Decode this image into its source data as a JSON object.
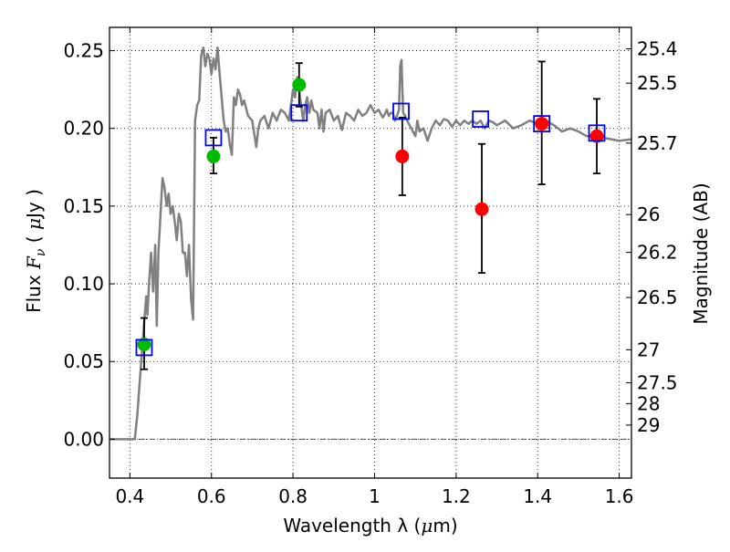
{
  "chart_data": {
    "type": "scatter",
    "title": "",
    "xlabel": {
      "pre": "Wavelength  λ (",
      "mu": "μ",
      "post": "m)"
    },
    "ylabel": {
      "pre": "Flux  ",
      "F": "F",
      "nu": "ν",
      "mid": "  ( ",
      "mu": "μ",
      "post": "Jy )"
    },
    "y2label": "Magnitude (AB)",
    "xlim": [
      0.35,
      1.63
    ],
    "ylim": [
      -0.025,
      0.265
    ],
    "grid": true,
    "xticks": [
      {
        "value": 0.4,
        "label": "0.4"
      },
      {
        "value": 0.6,
        "label": "0.6"
      },
      {
        "value": 0.8,
        "label": "0.8"
      },
      {
        "value": 1.0,
        "label": "1"
      },
      {
        "value": 1.2,
        "label": "1.2"
      },
      {
        "value": 1.4,
        "label": "1.4"
      },
      {
        "value": 1.6,
        "label": "1.6"
      }
    ],
    "yticks": [
      {
        "value": 0.0,
        "label": "0.00"
      },
      {
        "value": 0.05,
        "label": "0.05"
      },
      {
        "value": 0.1,
        "label": "0.10"
      },
      {
        "value": 0.15,
        "label": "0.15"
      },
      {
        "value": 0.2,
        "label": "0.20"
      },
      {
        "value": 0.25,
        "label": "0.25"
      }
    ],
    "y2ticks": [
      {
        "mag": 25.4,
        "label": "25.4"
      },
      {
        "mag": 25.5,
        "label": "25.5"
      },
      {
        "mag": 25.7,
        "label": "25.7"
      },
      {
        "mag": 26,
        "label": "26"
      },
      {
        "mag": 26.2,
        "label": "26.2"
      },
      {
        "mag": 26.5,
        "label": "26.5"
      },
      {
        "mag": 27,
        "label": "27"
      },
      {
        "mag": 27.5,
        "label": "27.5"
      },
      {
        "mag": 28,
        "label": "28"
      },
      {
        "mag": 29,
        "label": "29"
      }
    ],
    "colors": {
      "model": "#808080",
      "model_photometry": "#0000ff",
      "detections": "#00bb00",
      "upper_points": "#ff0000",
      "errorbar": "#000000"
    },
    "series": [
      {
        "kind": "model-spectrum",
        "points": [
          [
            0.35,
            0.0
          ],
          [
            0.36,
            0.0
          ],
          [
            0.38,
            0.0
          ],
          [
            0.4,
            0.0
          ],
          [
            0.412,
            0.0
          ],
          [
            0.418,
            0.015
          ],
          [
            0.425,
            0.04
          ],
          [
            0.43,
            0.058
          ],
          [
            0.435,
            0.075
          ],
          [
            0.44,
            0.092
          ],
          [
            0.443,
            0.08
          ],
          [
            0.447,
            0.1
          ],
          [
            0.452,
            0.12
          ],
          [
            0.457,
            0.095
          ],
          [
            0.462,
            0.125
          ],
          [
            0.466,
            0.073
          ],
          [
            0.47,
            0.12
          ],
          [
            0.475,
            0.145
          ],
          [
            0.48,
            0.168
          ],
          [
            0.485,
            0.162
          ],
          [
            0.49,
            0.15
          ],
          [
            0.495,
            0.158
          ],
          [
            0.5,
            0.145
          ],
          [
            0.505,
            0.15
          ],
          [
            0.51,
            0.14
          ],
          [
            0.515,
            0.128
          ],
          [
            0.52,
            0.145
          ],
          [
            0.525,
            0.14
          ],
          [
            0.53,
            0.12
          ],
          [
            0.535,
            0.12
          ],
          [
            0.54,
            0.105
          ],
          [
            0.545,
            0.125
          ],
          [
            0.55,
            0.09
          ],
          [
            0.555,
            0.077
          ],
          [
            0.56,
            0.205
          ],
          [
            0.565,
            0.215
          ],
          [
            0.57,
            0.218
          ],
          [
            0.575,
            0.247
          ],
          [
            0.58,
            0.252
          ],
          [
            0.585,
            0.24
          ],
          [
            0.59,
            0.248
          ],
          [
            0.595,
            0.245
          ],
          [
            0.6,
            0.235
          ],
          [
            0.605,
            0.245
          ],
          [
            0.61,
            0.238
          ],
          [
            0.615,
            0.252
          ],
          [
            0.62,
            0.235
          ],
          [
            0.625,
            0.22
          ],
          [
            0.63,
            0.205
          ],
          [
            0.635,
            0.198
          ],
          [
            0.64,
            0.2
          ],
          [
            0.645,
            0.19
          ],
          [
            0.65,
            0.183
          ],
          [
            0.655,
            0.22
          ],
          [
            0.66,
            0.215
          ],
          [
            0.665,
            0.225
          ],
          [
            0.67,
            0.222
          ],
          [
            0.675,
            0.215
          ],
          [
            0.68,
            0.218
          ],
          [
            0.69,
            0.208
          ],
          [
            0.7,
            0.205
          ],
          [
            0.71,
            0.188
          ],
          [
            0.715,
            0.2
          ],
          [
            0.72,
            0.205
          ],
          [
            0.73,
            0.208
          ],
          [
            0.74,
            0.2
          ],
          [
            0.75,
            0.21
          ],
          [
            0.76,
            0.205
          ],
          [
            0.77,
            0.212
          ],
          [
            0.78,
            0.21
          ],
          [
            0.79,
            0.205
          ],
          [
            0.8,
            0.225
          ],
          [
            0.805,
            0.22
          ],
          [
            0.81,
            0.233
          ],
          [
            0.815,
            0.225
          ],
          [
            0.82,
            0.215
          ],
          [
            0.825,
            0.205
          ],
          [
            0.83,
            0.215
          ],
          [
            0.835,
            0.22
          ],
          [
            0.84,
            0.21
          ],
          [
            0.845,
            0.218
          ],
          [
            0.85,
            0.212
          ],
          [
            0.86,
            0.21
          ],
          [
            0.865,
            0.2
          ],
          [
            0.87,
            0.212
          ],
          [
            0.875,
            0.198
          ],
          [
            0.88,
            0.21
          ],
          [
            0.89,
            0.212
          ],
          [
            0.9,
            0.205
          ],
          [
            0.91,
            0.208
          ],
          [
            0.92,
            0.199
          ],
          [
            0.93,
            0.21
          ],
          [
            0.94,
            0.208
          ],
          [
            0.95,
            0.205
          ],
          [
            0.96,
            0.212
          ],
          [
            0.97,
            0.208
          ],
          [
            0.98,
            0.21
          ],
          [
            0.99,
            0.215
          ],
          [
            1.0,
            0.21
          ],
          [
            1.01,
            0.212
          ],
          [
            1.02,
            0.207
          ],
          [
            1.025,
            0.209
          ],
          [
            1.03,
            0.212
          ],
          [
            1.035,
            0.208
          ],
          [
            1.04,
            0.21
          ],
          [
            1.045,
            0.21
          ],
          [
            1.05,
            0.205
          ],
          [
            1.055,
            0.208
          ],
          [
            1.06,
            0.212
          ],
          [
            1.063,
            0.24
          ],
          [
            1.066,
            0.244
          ],
          [
            1.07,
            0.21
          ],
          [
            1.075,
            0.208
          ],
          [
            1.08,
            0.205
          ],
          [
            1.09,
            0.2
          ],
          [
            1.1,
            0.195
          ],
          [
            1.105,
            0.205
          ],
          [
            1.11,
            0.198
          ],
          [
            1.12,
            0.2
          ],
          [
            1.13,
            0.192
          ],
          [
            1.14,
            0.2
          ],
          [
            1.15,
            0.205
          ],
          [
            1.16,
            0.202
          ],
          [
            1.17,
            0.206
          ],
          [
            1.18,
            0.205
          ],
          [
            1.19,
            0.201
          ],
          [
            1.2,
            0.205
          ],
          [
            1.21,
            0.202
          ],
          [
            1.22,
            0.205
          ],
          [
            1.23,
            0.203
          ],
          [
            1.24,
            0.205
          ],
          [
            1.25,
            0.203
          ],
          [
            1.26,
            0.205
          ],
          [
            1.27,
            0.2
          ],
          [
            1.28,
            0.205
          ],
          [
            1.29,
            0.204
          ],
          [
            1.3,
            0.202
          ],
          [
            1.32,
            0.205
          ],
          [
            1.34,
            0.2
          ],
          [
            1.36,
            0.202
          ],
          [
            1.38,
            0.205
          ],
          [
            1.4,
            0.203
          ],
          [
            1.42,
            0.205
          ],
          [
            1.44,
            0.202
          ],
          [
            1.46,
            0.198
          ],
          [
            1.48,
            0.2
          ],
          [
            1.5,
            0.198
          ],
          [
            1.52,
            0.195
          ],
          [
            1.54,
            0.195
          ],
          [
            1.56,
            0.194
          ],
          [
            1.58,
            0.193
          ],
          [
            1.6,
            0.192
          ],
          [
            1.63,
            0.193
          ]
        ]
      },
      {
        "kind": "model-photometry",
        "name": "",
        "points": [
          [
            0.435,
            0.059
          ],
          [
            0.605,
            0.194
          ],
          [
            0.815,
            0.21
          ],
          [
            1.065,
            0.211
          ],
          [
            1.26,
            0.206
          ],
          [
            1.41,
            0.203
          ],
          [
            1.545,
            0.197
          ]
        ]
      },
      {
        "kind": "green-points",
        "points": [
          {
            "x": 0.435,
            "y": 0.061,
            "err": [
              0.045,
              0.078
            ]
          },
          {
            "x": 0.605,
            "y": 0.182,
            "err": [
              0.171,
              0.194
            ]
          },
          {
            "x": 0.815,
            "y": 0.228,
            "err": [
              0.214,
              0.242
            ]
          }
        ]
      },
      {
        "kind": "red-points",
        "points": [
          {
            "x": 1.068,
            "y": 0.182,
            "err": [
              0.157,
              0.207
            ]
          },
          {
            "x": 1.263,
            "y": 0.148,
            "err": [
              0.107,
              0.19
            ]
          },
          {
            "x": 1.41,
            "y": 0.203,
            "err": [
              0.164,
              0.243
            ]
          },
          {
            "x": 1.545,
            "y": 0.195,
            "err": [
              0.171,
              0.219
            ]
          }
        ]
      }
    ]
  }
}
